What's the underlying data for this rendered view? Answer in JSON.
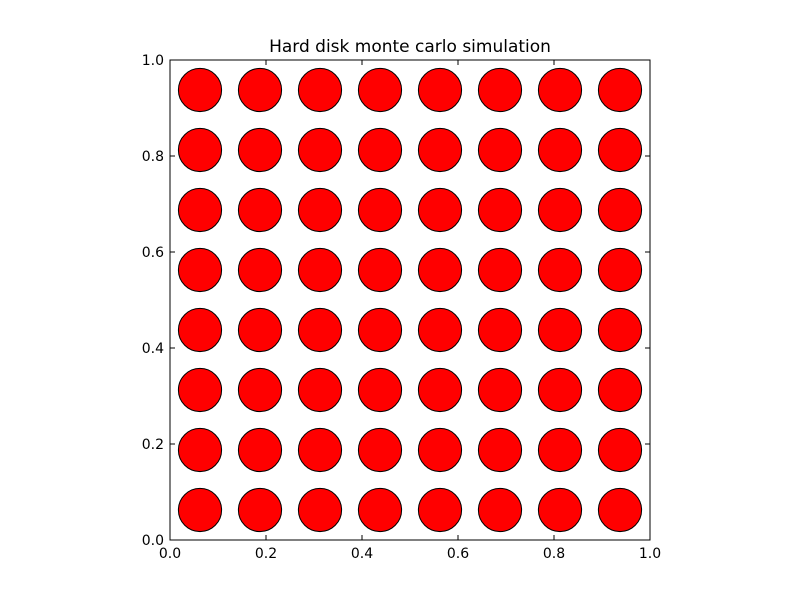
{
  "chart_data": {
    "type": "scatter",
    "title": "Hard disk monte carlo simulation",
    "xlabel": "",
    "ylabel": "",
    "xlim": [
      0.0,
      1.0
    ],
    "ylim": [
      0.0,
      1.0
    ],
    "xticks": [
      0.0,
      0.2,
      0.4,
      0.6,
      0.8,
      1.0
    ],
    "yticks": [
      0.0,
      0.2,
      0.4,
      0.6,
      0.8,
      1.0
    ],
    "xtick_labels": [
      "0.0",
      "0.2",
      "0.4",
      "0.6",
      "0.8",
      "1.0"
    ],
    "ytick_labels": [
      "0.0",
      "0.2",
      "0.4",
      "0.6",
      "0.8",
      "1.0"
    ],
    "grid": false,
    "disk_radius": 0.045,
    "disk_fill_color": "#ff0000",
    "disk_edge_color": "#000000",
    "grid_columns_x": [
      0.0625,
      0.1875,
      0.3125,
      0.4375,
      0.5625,
      0.6875,
      0.8125,
      0.9375
    ],
    "grid_rows_y": [
      0.0625,
      0.1875,
      0.3125,
      0.4375,
      0.5625,
      0.6875,
      0.8125,
      0.9375
    ]
  }
}
